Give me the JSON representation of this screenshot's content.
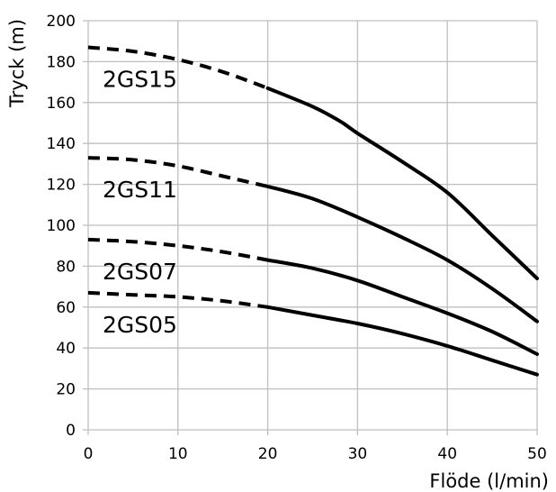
{
  "chart_data": {
    "type": "line",
    "title": "",
    "xlabel": "Flöde (l/min)",
    "ylabel": "Tryck (m)",
    "xlim": [
      0,
      50
    ],
    "ylim": [
      0,
      200
    ],
    "xticks": [
      0,
      10,
      20,
      30,
      40,
      50
    ],
    "yticks": [
      0,
      20,
      40,
      60,
      80,
      100,
      120,
      140,
      160,
      180,
      200
    ],
    "grid": true,
    "legend": "none",
    "dashed_until_x": 20,
    "line_color": "#000000",
    "grid_color": "#bfbfbf",
    "series": [
      {
        "name": "2GS15",
        "x": [
          0,
          5,
          10,
          15,
          20,
          25,
          28,
          30,
          35,
          40,
          45,
          50
        ],
        "y": [
          187,
          185,
          181,
          175,
          167,
          158,
          151,
          145,
          131,
          116,
          95,
          74
        ]
      },
      {
        "name": "2GS11",
        "x": [
          0,
          5,
          10,
          15,
          20,
          25,
          30,
          35,
          40,
          45,
          50
        ],
        "y": [
          133,
          132,
          129,
          124,
          119,
          113,
          104,
          94,
          83,
          69,
          53
        ]
      },
      {
        "name": "2GS07",
        "x": [
          0,
          5,
          10,
          15,
          20,
          25,
          30,
          35,
          40,
          45,
          50
        ],
        "y": [
          93,
          92,
          90,
          87,
          83,
          79,
          73,
          65,
          57,
          48,
          37
        ]
      },
      {
        "name": "2GS05",
        "x": [
          0,
          5,
          10,
          15,
          20,
          25,
          30,
          35,
          40,
          45,
          50
        ],
        "y": [
          67,
          66,
          65,
          63,
          60,
          56,
          52,
          47,
          41,
          34,
          27
        ]
      }
    ]
  }
}
